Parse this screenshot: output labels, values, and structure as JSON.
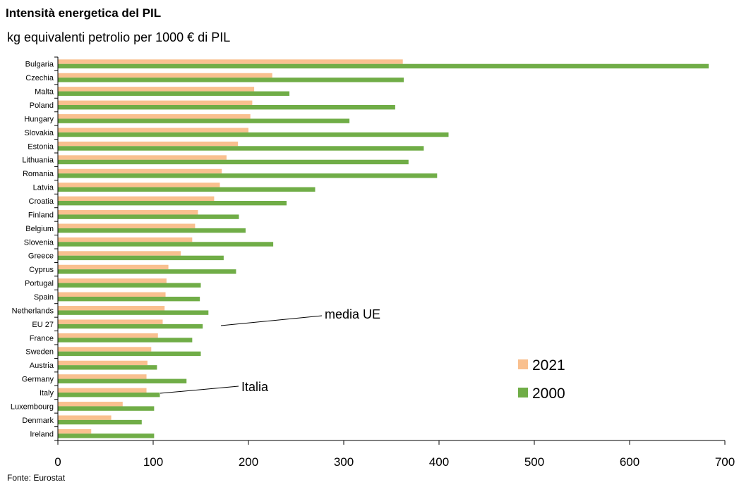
{
  "page": {
    "title": "Intensità energetica del PIL",
    "subtitle": "kg equivalenti petrolio per 1000 € di PIL",
    "source": "Fonte: Eurostat"
  },
  "chart_data": {
    "type": "bar",
    "orientation": "horizontal",
    "title": "Intensità energetica del PIL",
    "subtitle": "kg equivalenti petrolio per 1000 € di PIL",
    "xlabel": "",
    "ylabel": "",
    "xlim": [
      0,
      700
    ],
    "xticks": [
      0,
      100,
      200,
      300,
      400,
      500,
      600,
      700
    ],
    "grid": false,
    "legend_position": "bottom-right",
    "categories": [
      "Bulgaria",
      "Czechia",
      "Malta",
      "Poland",
      "Hungary",
      "Slovakia",
      "Estonia",
      "Lithuania",
      "Romania",
      "Latvia",
      "Croatia",
      "Finland",
      "Belgium",
      "Slovenia",
      "Greece",
      "Cyprus",
      "Portugal",
      "Spain",
      "Netherlands",
      "EU 27",
      "France",
      "Sweden",
      "Austria",
      "Germany",
      "Italy",
      "Luxembourg",
      "Denmark",
      "Ireland"
    ],
    "series": [
      {
        "name": "2021",
        "color": "#F9C08F",
        "values": [
          362,
          225,
          206,
          204,
          202,
          200,
          189,
          177,
          172,
          170,
          164,
          147,
          144,
          141,
          129,
          116,
          114,
          113,
          112,
          110,
          105,
          98,
          94,
          93,
          93,
          68,
          56,
          35
        ]
      },
      {
        "name": "2000",
        "color": "#70AD47",
        "values": [
          683,
          363,
          243,
          354,
          306,
          410,
          384,
          368,
          398,
          270,
          240,
          190,
          197,
          226,
          174,
          187,
          150,
          149,
          158,
          152,
          141,
          150,
          104,
          135,
          107,
          101,
          88,
          101
        ]
      }
    ],
    "annotations": [
      {
        "text": "media UE",
        "category": "EU 27"
      },
      {
        "text": "Italia",
        "category": "Italy"
      }
    ]
  }
}
